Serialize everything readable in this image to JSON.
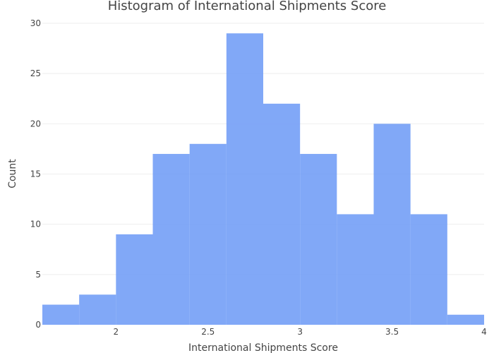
{
  "chart_data": {
    "type": "bar",
    "title": "Histogram of International Shipments Score",
    "xlabel": "International Shipments Score",
    "ylabel": "Count",
    "xlim": [
      1.6,
      4.0
    ],
    "ylim": [
      0,
      30
    ],
    "x_ticks": [
      2,
      2.5,
      3,
      3.5,
      4
    ],
    "x_tick_labels": [
      "2",
      "2.5",
      "3",
      "3.5",
      "4"
    ],
    "y_ticks": [
      0,
      5,
      10,
      15,
      20,
      25,
      30
    ],
    "bin_width": 0.2,
    "bins": [
      {
        "start": 1.6,
        "end": 1.8,
        "count": 2
      },
      {
        "start": 1.8,
        "end": 2.0,
        "count": 3
      },
      {
        "start": 2.0,
        "end": 2.2,
        "count": 9
      },
      {
        "start": 2.2,
        "end": 2.4,
        "count": 17
      },
      {
        "start": 2.4,
        "end": 2.6,
        "count": 18
      },
      {
        "start": 2.6,
        "end": 2.8,
        "count": 29
      },
      {
        "start": 2.8,
        "end": 3.0,
        "count": 22
      },
      {
        "start": 3.0,
        "end": 3.2,
        "count": 17
      },
      {
        "start": 3.2,
        "end": 3.4,
        "count": 11
      },
      {
        "start": 3.4,
        "end": 3.6,
        "count": 20
      },
      {
        "start": 3.6,
        "end": 3.8,
        "count": 11
      },
      {
        "start": 3.8,
        "end": 4.0,
        "count": 1
      }
    ],
    "bar_color": "#6f9cf6",
    "grid": true,
    "legend": "none"
  }
}
